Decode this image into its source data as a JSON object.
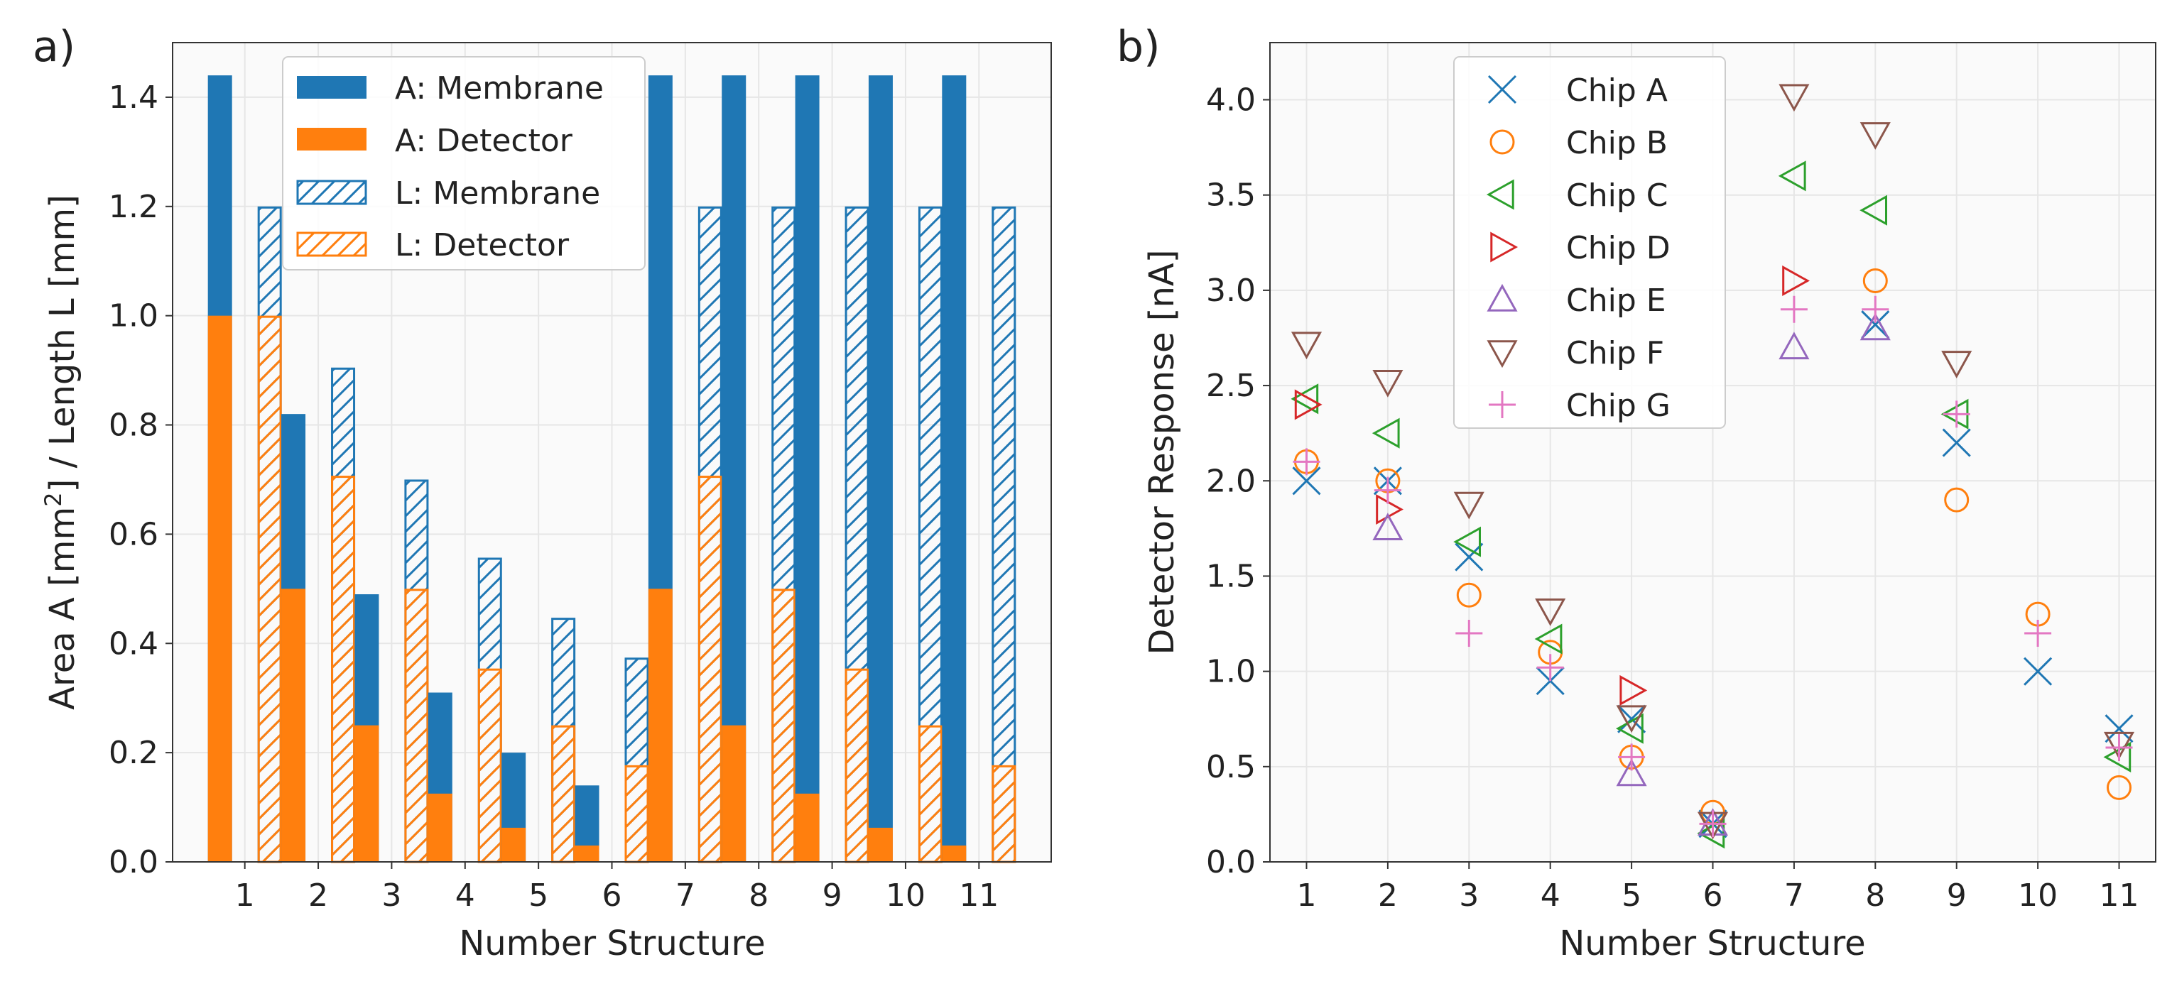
{
  "chart_data": [
    {
      "panel": "a)",
      "type": "bar",
      "xlabel": "Number Structure",
      "ylabel_parts": [
        "Area A [mm",
        "2",
        "] / Length L [mm]"
      ],
      "ylim": [
        0,
        1.5
      ],
      "yticks": [
        "0.0",
        "0.2",
        "0.4",
        "0.6",
        "0.8",
        "1.0",
        "1.2",
        "1.4"
      ],
      "categories": [
        "1",
        "2",
        "3",
        "4",
        "5",
        "6",
        "7",
        "8",
        "9",
        "10",
        "11"
      ],
      "grid": true,
      "legend_position": "top-center",
      "series": [
        {
          "name": "A: Membrane",
          "style": "solid",
          "color": "#1f77b4",
          "values": [
            1.44,
            0.82,
            0.49,
            0.31,
            0.2,
            0.14,
            1.44,
            1.44,
            1.44,
            1.44,
            1.44
          ]
        },
        {
          "name": "A: Detector",
          "style": "solid",
          "color": "#ff7f0e",
          "values": [
            1.0,
            0.5,
            0.25,
            0.125,
            0.0625,
            0.03,
            0.5,
            0.25,
            0.125,
            0.0625,
            0.03
          ]
        },
        {
          "name": "L: Membrane",
          "style": "hatched",
          "color": "#1f77b4",
          "values": [
            1.2,
            0.905,
            0.7,
            0.557,
            0.447,
            0.374,
            1.2,
            1.2,
            1.2,
            1.2,
            1.2
          ]
        },
        {
          "name": "L: Detector",
          "style": "hatched",
          "color": "#ff7f0e",
          "values": [
            1.0,
            0.707,
            0.5,
            0.354,
            0.25,
            0.177,
            0.707,
            0.5,
            0.354,
            0.25,
            0.177
          ]
        }
      ]
    },
    {
      "panel": "b)",
      "type": "scatter",
      "xlabel": "Number Structure",
      "ylabel": "Detector Response [nA]",
      "xlim": [
        0.55,
        11.45
      ],
      "ylim": [
        0,
        4.3
      ],
      "xticks": [
        "1",
        "2",
        "3",
        "4",
        "5",
        "6",
        "7",
        "8",
        "9",
        "10",
        "11"
      ],
      "yticks": [
        "0.0",
        "0.5",
        "1.0",
        "1.5",
        "2.0",
        "2.5",
        "3.0",
        "3.5",
        "4.0"
      ],
      "grid": true,
      "legend_position": "top-left",
      "x": [
        1,
        2,
        3,
        4,
        5,
        6,
        7,
        8,
        9,
        10,
        11
      ],
      "series": [
        {
          "name": "Chip A",
          "marker": "x",
          "color": "#1f77b4",
          "values": [
            2.0,
            2.0,
            1.6,
            0.95,
            0.75,
            0.2,
            null,
            2.82,
            2.2,
            1.0,
            0.7
          ]
        },
        {
          "name": "Chip B",
          "marker": "o",
          "color": "#ff7f0e",
          "values": [
            2.1,
            2.0,
            1.4,
            1.1,
            0.55,
            0.26,
            null,
            3.05,
            1.9,
            1.3,
            0.39
          ]
        },
        {
          "name": "Chip C",
          "marker": "<",
          "color": "#2ca02c",
          "values": [
            2.43,
            2.25,
            1.68,
            1.17,
            0.7,
            0.15,
            3.6,
            3.42,
            2.35,
            null,
            0.55
          ]
        },
        {
          "name": "Chip D",
          "marker": ">",
          "color": "#d62728",
          "values": [
            2.4,
            1.85,
            null,
            null,
            0.9,
            null,
            3.05,
            null,
            null,
            null,
            null
          ]
        },
        {
          "name": "Chip E",
          "marker": "^",
          "color": "#9467bd",
          "values": [
            null,
            1.75,
            null,
            null,
            0.46,
            0.2,
            2.7,
            2.8,
            null,
            null,
            null
          ]
        },
        {
          "name": "Chip F",
          "marker": "v",
          "color": "#8c564b",
          "values": [
            2.72,
            2.52,
            1.88,
            1.32,
            0.76,
            0.2,
            4.02,
            3.82,
            2.62,
            null,
            0.62
          ]
        },
        {
          "name": "Chip G",
          "marker": "+",
          "color": "#e377c2",
          "values": [
            2.1,
            1.95,
            1.2,
            1.02,
            0.55,
            0.2,
            2.9,
            2.9,
            2.35,
            1.2,
            0.6
          ]
        }
      ]
    }
  ]
}
